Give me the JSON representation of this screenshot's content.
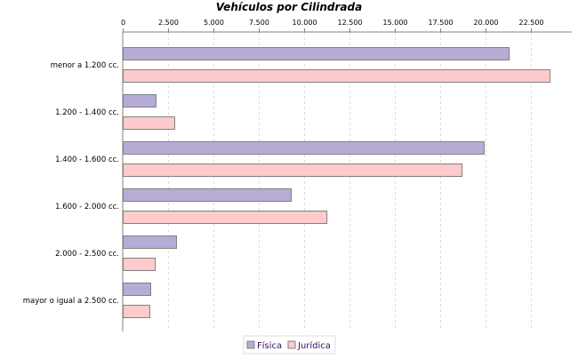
{
  "chart_data": {
    "type": "bar",
    "orientation": "horizontal",
    "title": "Vehículos por Cilindrada",
    "xlabel": "",
    "ylabel": "",
    "categories": [
      "menor a 1.200 cc.",
      "1.200 - 1.400 cc.",
      "1.400 - 1.600 cc.",
      "1.600 - 2.000 cc.",
      "2.000 - 2.500 cc.",
      "mayor o igual a 2.500 cc."
    ],
    "series": [
      {
        "name": "Física",
        "color": "#b6acd6",
        "values": [
          21280,
          1810,
          19900,
          9270,
          2940,
          1520
        ]
      },
      {
        "name": "Jurídica",
        "color": "#fdcbcb",
        "values": [
          23530,
          2840,
          18680,
          11230,
          1770,
          1470
        ]
      }
    ],
    "xlim": [
      0,
      24750
    ],
    "ticks": [
      "0",
      "2.500",
      "5.000",
      "7.500",
      "10.000",
      "12.500",
      "15.000",
      "17.500",
      "20.000",
      "22.500"
    ],
    "tick_values": [
      0,
      2500,
      5000,
      7500,
      10000,
      12500,
      15000,
      17500,
      20000,
      22500
    ],
    "x_axis_position": "top",
    "grid": true,
    "legend_position": "bottom"
  }
}
